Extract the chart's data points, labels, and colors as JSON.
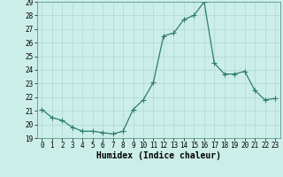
{
  "x": [
    0,
    1,
    2,
    3,
    4,
    5,
    6,
    7,
    8,
    9,
    10,
    11,
    12,
    13,
    14,
    15,
    16,
    17,
    18,
    19,
    20,
    21,
    22,
    23
  ],
  "y": [
    21.1,
    20.5,
    20.3,
    19.8,
    19.5,
    19.5,
    19.4,
    19.3,
    19.5,
    21.1,
    21.8,
    23.1,
    26.5,
    26.7,
    27.7,
    28.0,
    29.0,
    24.5,
    23.7,
    23.7,
    23.9,
    22.5,
    21.8,
    21.9
  ],
  "line_color": "#2e7d6e",
  "marker": "+",
  "markersize": 4,
  "linewidth": 0.9,
  "xlabel": "Humidex (Indice chaleur)",
  "xlim": [
    -0.5,
    23.5
  ],
  "ylim": [
    19,
    29
  ],
  "yticks": [
    19,
    20,
    21,
    22,
    23,
    24,
    25,
    26,
    27,
    28,
    29
  ],
  "xticks": [
    0,
    1,
    2,
    3,
    4,
    5,
    6,
    7,
    8,
    9,
    10,
    11,
    12,
    13,
    14,
    15,
    16,
    17,
    18,
    19,
    20,
    21,
    22,
    23
  ],
  "bg_color": "#cceee8",
  "grid_color": "#b0d8d0",
  "tick_labelsize": 5.5,
  "xlabel_fontsize": 7
}
